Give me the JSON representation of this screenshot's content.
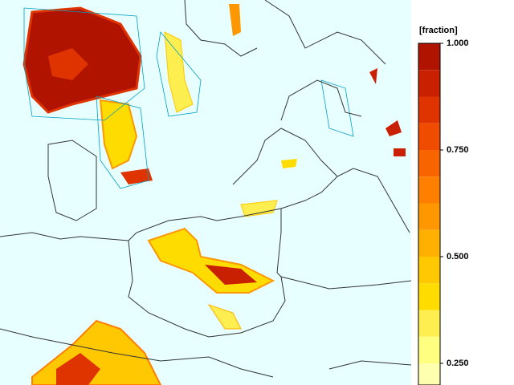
{
  "colorbar": {
    "title": "[fraction]",
    "ticks": [
      {
        "value": 1,
        "label": "1.000"
      },
      {
        "value": 0.75,
        "label": "0.750"
      },
      {
        "value": 0.5,
        "label": "0.500"
      },
      {
        "value": 0.25,
        "label": "0.250"
      }
    ],
    "bands": [
      {
        "from": 0.9375,
        "to": 1,
        "color": "#b01400"
      },
      {
        "from": 0.875,
        "to": 0.9375,
        "color": "#c82000"
      },
      {
        "from": 0.8125,
        "to": 0.875,
        "color": "#e03400"
      },
      {
        "from": 0.75,
        "to": 0.8125,
        "color": "#f04c00"
      },
      {
        "from": 0.6875,
        "to": 0.75,
        "color": "#f86400"
      },
      {
        "from": 0.625,
        "to": 0.6875,
        "color": "#ff8000"
      },
      {
        "from": 0.5625,
        "to": 0.625,
        "color": "#ff9800"
      },
      {
        "from": 0.5,
        "to": 0.5625,
        "color": "#ffb000"
      },
      {
        "from": 0.4375,
        "to": 0.5,
        "color": "#ffc800"
      },
      {
        "from": 0.375,
        "to": 0.4375,
        "color": "#ffdc00"
      },
      {
        "from": 0.3125,
        "to": 0.375,
        "color": "#ffee50"
      },
      {
        "from": 0.25,
        "to": 0.3125,
        "color": "#ffff80"
      },
      {
        "from": 0.1875,
        "to": 0.25,
        "color": "#ffffb0"
      }
    ]
  }
}
